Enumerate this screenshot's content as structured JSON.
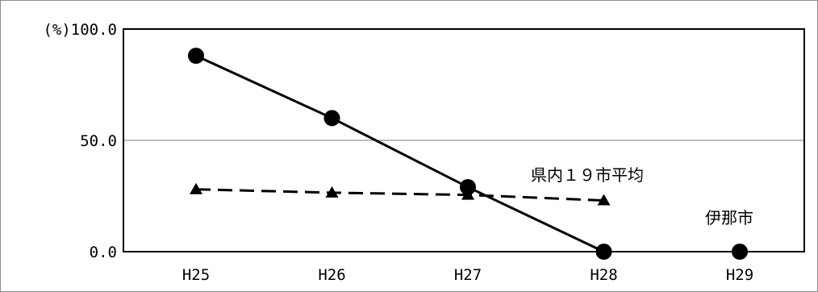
{
  "chart_data": {
    "type": "line",
    "categories": [
      "H25",
      "H26",
      "H27",
      "H28",
      "H29"
    ],
    "ylim": [
      0,
      100
    ],
    "yticks": [
      0,
      50,
      100
    ],
    "ytick_labels": [
      "0.0",
      "50.0",
      "(%)100.0"
    ],
    "grid": "horizontal at 50.0",
    "series": [
      {
        "name": "伊那市",
        "values": [
          88,
          60,
          29,
          0,
          0
        ],
        "line": "solid",
        "marker": "circle",
        "color": "#000000"
      },
      {
        "name": "県内１９市平均",
        "values": [
          28,
          26.5,
          25.5,
          23,
          null
        ],
        "line": "dashed",
        "marker": "triangle",
        "color": "#000000"
      }
    ]
  }
}
